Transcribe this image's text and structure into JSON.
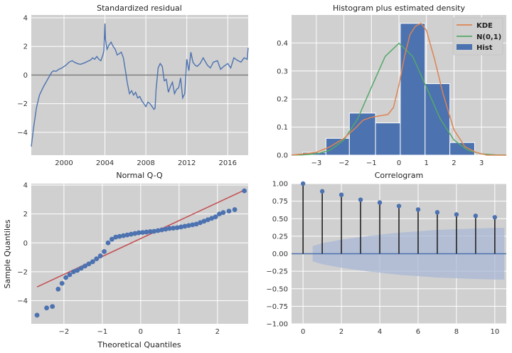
{
  "chart_data": [
    {
      "type": "line",
      "title": "Standardized residual",
      "xlim": [
        1996.8,
        2018.0
      ],
      "ylim": [
        -5.6,
        4.2
      ],
      "x_ticks": [
        2000,
        2004,
        2008,
        2012,
        2016
      ],
      "x_tick_labels": [
        "2000",
        "2004",
        "2008",
        "2012",
        "2016"
      ],
      "y_ticks": [
        -4,
        -2,
        0,
        2,
        4
      ],
      "y_tick_labels": [
        "−4",
        "−2",
        "0",
        "2",
        "4"
      ],
      "zero_line": 0,
      "grid": true,
      "colors": {
        "series": "#4c72b0",
        "zero_line": "#777777"
      },
      "series": [
        {
          "x": [
            1996.8,
            1997.0,
            1997.3,
            1997.6,
            1998.0,
            1998.4,
            1998.8,
            1999.0,
            1999.2,
            1999.5,
            1999.8,
            2000.0,
            2000.2,
            2000.5,
            2000.8,
            2001.0,
            2001.3,
            2001.6,
            2002.0,
            2002.3,
            2002.6,
            2002.8,
            2003.0,
            2003.2,
            2003.4,
            2003.6,
            2003.8,
            2003.9,
            2004.0,
            2004.05,
            2004.2,
            2004.4,
            2004.6,
            2004.8,
            2005.0,
            2005.2,
            2005.4,
            2005.6,
            2005.8,
            2006.0,
            2006.2,
            2006.4,
            2006.6,
            2006.8,
            2007.0,
            2007.2,
            2007.4,
            2007.6,
            2007.8,
            2008.0,
            2008.2,
            2008.4,
            2008.6,
            2008.8,
            2008.9,
            2009.0,
            2009.2,
            2009.4,
            2009.6,
            2009.8,
            2010.0,
            2010.2,
            2010.4,
            2010.6,
            2010.8,
            2011.0,
            2011.2,
            2011.4,
            2011.6,
            2011.8,
            2012.0,
            2012.2,
            2012.4,
            2012.6,
            2012.8,
            2013.0,
            2013.3,
            2013.6,
            2014.0,
            2014.3,
            2014.6,
            2015.0,
            2015.3,
            2015.6,
            2016.0,
            2016.3,
            2016.6,
            2017.0,
            2017.3,
            2017.6,
            2017.9,
            2018.0
          ],
          "y": [
            -5.0,
            -3.8,
            -2.3,
            -1.4,
            -0.8,
            -0.3,
            0.2,
            0.3,
            0.25,
            0.4,
            0.5,
            0.6,
            0.7,
            0.9,
            1.0,
            0.9,
            0.8,
            0.75,
            0.85,
            0.95,
            1.05,
            1.2,
            1.1,
            1.3,
            1.1,
            1.0,
            1.4,
            1.7,
            3.6,
            2.5,
            1.8,
            2.1,
            2.3,
            2.0,
            1.8,
            1.4,
            1.5,
            1.6,
            1.2,
            0.3,
            -0.6,
            -1.3,
            -1.1,
            -1.4,
            -1.2,
            -1.6,
            -1.5,
            -1.8,
            -2.0,
            -2.2,
            -1.9,
            -2.0,
            -2.2,
            -2.4,
            -2.3,
            -1.0,
            0.5,
            0.8,
            0.6,
            -0.4,
            -0.3,
            -1.2,
            -0.8,
            -0.5,
            -1.3,
            -1.0,
            -0.9,
            -0.2,
            -1.6,
            -1.3,
            1.1,
            0.3,
            1.6,
            0.9,
            0.7,
            0.6,
            0.8,
            1.2,
            0.7,
            0.5,
            0.9,
            1.0,
            0.4,
            0.6,
            0.8,
            0.5,
            1.2,
            1.0,
            0.9,
            1.2,
            1.1,
            1.9
          ]
        }
      ]
    },
    {
      "type": "bar",
      "title": "Histogram plus estimated density",
      "xlim": [
        -3.9,
        3.9
      ],
      "ylim": [
        0,
        0.5
      ],
      "x_ticks": [
        -3,
        -2,
        -1,
        0,
        1,
        2,
        3
      ],
      "x_tick_labels": [
        "−3",
        "−2",
        "−1",
        "0",
        "1",
        "2",
        "3"
      ],
      "y_ticks": [
        0.0,
        0.1,
        0.2,
        0.3,
        0.4
      ],
      "y_tick_labels": [
        "0.0",
        "0.1",
        "0.2",
        "0.3",
        "0.4"
      ],
      "grid": true,
      "bins": [
        {
          "x0": -3.5,
          "x1": -2.65,
          "value": 0.01
        },
        {
          "x0": -2.65,
          "x1": -1.8,
          "value": 0.06
        },
        {
          "x0": -1.8,
          "x1": -0.85,
          "value": 0.15
        },
        {
          "x0": -0.85,
          "x1": 0.05,
          "value": 0.115
        },
        {
          "x0": 0.05,
          "x1": 0.95,
          "value": 0.47
        },
        {
          "x0": 0.95,
          "x1": 1.85,
          "value": 0.255
        },
        {
          "x0": 1.85,
          "x1": 2.75,
          "value": 0.045
        }
      ],
      "lines": [
        {
          "name": "KDE",
          "x": [
            -3.9,
            -3.0,
            -2.5,
            -2.0,
            -1.6,
            -1.3,
            -1.0,
            -0.7,
            -0.4,
            -0.2,
            0.0,
            0.2,
            0.4,
            0.6,
            0.8,
            1.0,
            1.3,
            1.6,
            2.0,
            2.4,
            2.8,
            3.2,
            3.6,
            3.9
          ],
          "y": [
            0.0,
            0.01,
            0.03,
            0.06,
            0.095,
            0.125,
            0.135,
            0.14,
            0.145,
            0.17,
            0.25,
            0.35,
            0.43,
            0.46,
            0.47,
            0.445,
            0.34,
            0.22,
            0.09,
            0.03,
            0.01,
            0.0,
            0.0,
            0.0
          ]
        },
        {
          "name": "N(0,1)",
          "x": [
            -3.9,
            -3.5,
            -3.0,
            -2.5,
            -2.0,
            -1.5,
            -1.0,
            -0.5,
            0.0,
            0.5,
            1.0,
            1.5,
            2.0,
            2.5,
            3.0,
            3.5,
            3.9
          ],
          "y": [
            0.0002,
            0.0009,
            0.0044,
            0.0175,
            0.054,
            0.1295,
            0.242,
            0.352,
            0.399,
            0.352,
            0.242,
            0.1295,
            0.054,
            0.0175,
            0.0044,
            0.0009,
            0.0002
          ]
        }
      ],
      "legend": {
        "position": "top-right",
        "entries": [
          "KDE",
          "N(0,1)",
          "Hist"
        ]
      },
      "colors": {
        "KDE": "#dd8452",
        "N(0,1)": "#55a868",
        "Hist": "#4c72b0"
      }
    },
    {
      "type": "scatter",
      "title": "Normal Q-Q",
      "xlabel": "Theoretical Quantiles",
      "ylabel": "Sample Quantiles",
      "xlim": [
        -2.85,
        2.8
      ],
      "ylim": [
        -5.6,
        4.1
      ],
      "x_ticks": [
        -2,
        -1,
        0,
        1,
        2
      ],
      "x_tick_labels": [
        "−2",
        "−1",
        "0",
        "1",
        "2"
      ],
      "y_ticks": [
        -4,
        -2,
        0,
        2,
        4
      ],
      "y_tick_labels": [
        "−4",
        "−2",
        "0",
        "2",
        "4"
      ],
      "grid": true,
      "reference_line": {
        "x": [
          -2.7,
          2.7
        ],
        "y": [
          -3.05,
          3.65
        ]
      },
      "points": {
        "x": [
          -2.7,
          -2.45,
          -2.3,
          -2.15,
          -2.05,
          -1.95,
          -1.85,
          -1.75,
          -1.65,
          -1.55,
          -1.45,
          -1.35,
          -1.25,
          -1.15,
          -1.05,
          -0.95,
          -0.85,
          -0.75,
          -0.65,
          -0.55,
          -0.45,
          -0.35,
          -0.25,
          -0.15,
          -0.05,
          0.05,
          0.15,
          0.25,
          0.35,
          0.45,
          0.55,
          0.65,
          0.75,
          0.85,
          0.95,
          1.05,
          1.15,
          1.25,
          1.35,
          1.45,
          1.55,
          1.65,
          1.75,
          1.85,
          1.95,
          2.05,
          2.15,
          2.3,
          2.45,
          2.7
        ],
        "y": [
          -5.0,
          -4.5,
          -4.4,
          -3.2,
          -2.8,
          -2.4,
          -2.2,
          -2.0,
          -1.9,
          -1.75,
          -1.6,
          -1.45,
          -1.3,
          -1.1,
          -0.9,
          -0.6,
          0.0,
          0.25,
          0.4,
          0.45,
          0.5,
          0.55,
          0.6,
          0.65,
          0.7,
          0.72,
          0.75,
          0.78,
          0.8,
          0.85,
          0.9,
          0.95,
          1.0,
          1.02,
          1.05,
          1.1,
          1.15,
          1.2,
          1.25,
          1.3,
          1.4,
          1.5,
          1.6,
          1.7,
          1.8,
          2.0,
          2.1,
          2.2,
          2.3,
          3.6
        ]
      },
      "colors": {
        "points": "#4c72b0",
        "reference_line": "#c44e52"
      }
    },
    {
      "type": "bar",
      "title": "Correlogram",
      "xlim": [
        -0.6,
        10.6
      ],
      "ylim": [
        -1.0,
        1.0
      ],
      "x_ticks": [
        0,
        2,
        4,
        6,
        8,
        10
      ],
      "x_tick_labels": [
        "0",
        "2",
        "4",
        "6",
        "8",
        "10"
      ],
      "y_ticks": [
        -1.0,
        -0.75,
        -0.5,
        -0.25,
        0.0,
        0.25,
        0.5,
        0.75,
        1.0
      ],
      "y_tick_labels": [
        "−1.00",
        "−0.75",
        "−0.50",
        "−0.25",
        "0.00",
        "0.25",
        "0.50",
        "0.75",
        "1.00"
      ],
      "grid": true,
      "lags": [
        0,
        1,
        2,
        3,
        4,
        5,
        6,
        7,
        8,
        9,
        10
      ],
      "values": [
        1.0,
        0.89,
        0.84,
        0.77,
        0.73,
        0.68,
        0.63,
        0.59,
        0.56,
        0.54,
        0.52
      ],
      "confidence_band": {
        "x": [
          0.5,
          1,
          2,
          3,
          4,
          5,
          6,
          7,
          8,
          9,
          10,
          10.5
        ],
        "upper": [
          0.11,
          0.15,
          0.2,
          0.24,
          0.27,
          0.3,
          0.32,
          0.34,
          0.35,
          0.36,
          0.37,
          0.37
        ]
      },
      "colors": {
        "stems": "#222222",
        "markers": "#4c72b0",
        "band": "#a9b8d6",
        "zero_line": "#4c72b0"
      }
    }
  ]
}
